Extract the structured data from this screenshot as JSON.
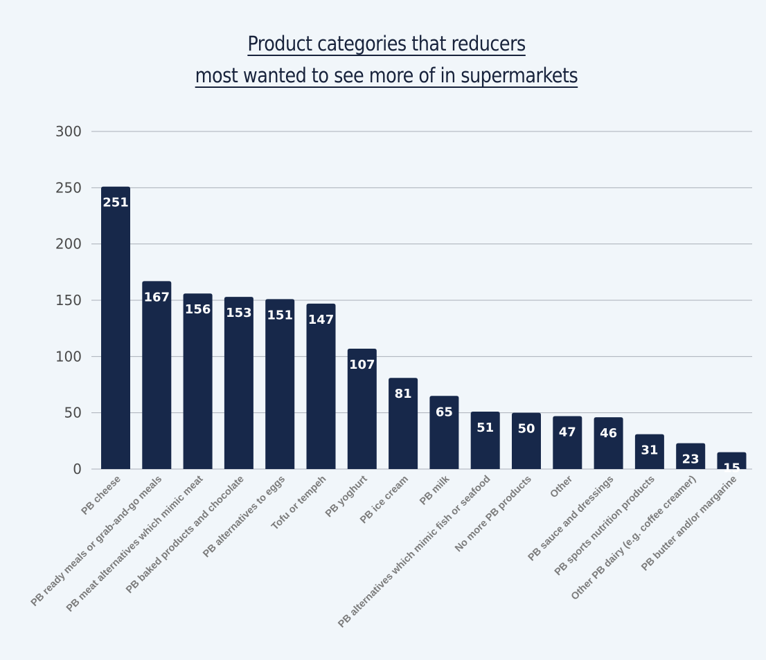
{
  "chart_data": {
    "type": "bar",
    "title_lines": [
      "Product categories that reducers",
      "most wanted to see more of in supermarkets"
    ],
    "categories": [
      "PB cheese",
      "PB ready meals or grab-and-go meals",
      "PB meat alternatives which mimic meat",
      "PB baked products and chocolate",
      "PB alternatives to eggs",
      "Tofu or tempeh",
      "PB yoghurt",
      "PB ice cream",
      "PB milk",
      "PB alternatives which mimic fish or seafood",
      "No more PB products",
      "Other",
      "PB sauce and dressings",
      "PB sports nutrition products",
      "Other PB dairy (e.g. coffee creamer)",
      "PB butter and/or margarine"
    ],
    "values": [
      251,
      167,
      156,
      153,
      151,
      147,
      107,
      81,
      65,
      51,
      50,
      47,
      46,
      31,
      23,
      15
    ],
    "ylim": [
      0,
      300
    ],
    "yticks": [
      0,
      50,
      100,
      150,
      200,
      250,
      300
    ],
    "grid": true,
    "data_labels": true,
    "bar_color": "#17284a",
    "grid_color": "#a9afb8"
  }
}
